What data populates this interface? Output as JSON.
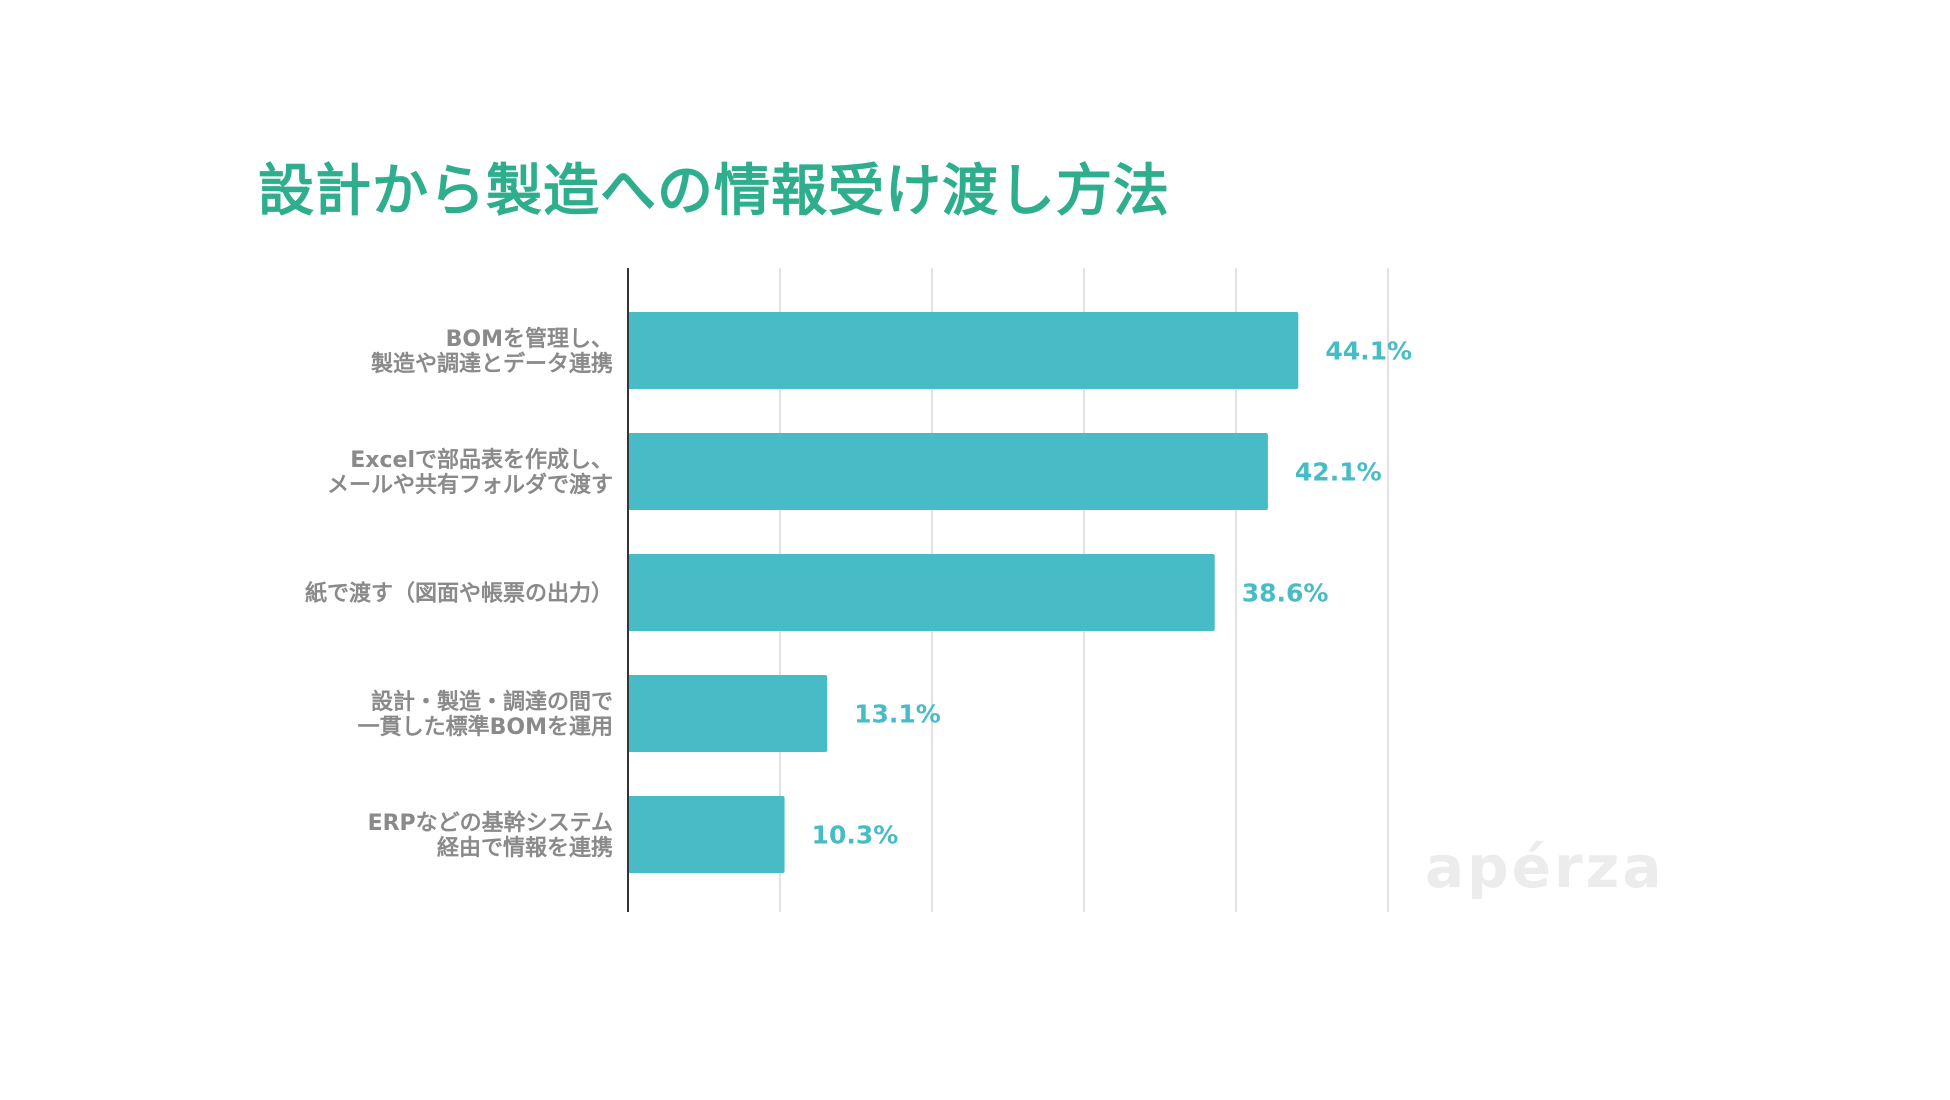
{
  "colors": {
    "title": "#2fae8d",
    "bar": "#47bcc6",
    "value_label": "#47bcc6",
    "category_label": "#8a8a8a",
    "grid": "#d9d9d9",
    "axis": "#333333"
  },
  "watermark": "apérza",
  "chart_data": {
    "type": "bar",
    "orientation": "horizontal",
    "title": "設計から製造への情報受け渡し方法",
    "categories": [
      [
        "BOMを管理し、",
        "製造や調達とデータ連携"
      ],
      [
        "Excelで部品表を作成し、",
        "メールや共有フォルダで渡す"
      ],
      [
        "紙で渡す（図面や帳票の出力）"
      ],
      [
        "設計・製造・調達の間で",
        "一貫した標準BOMを運用"
      ],
      [
        "ERPなどの基幹システム",
        "経由で情報を連携"
      ]
    ],
    "values": [
      44.1,
      42.1,
      38.6,
      13.1,
      10.3
    ],
    "value_labels": [
      "44.1%",
      "42.1%",
      "38.6%",
      "13.1%",
      "10.3%"
    ],
    "xlim": [
      0,
      50
    ],
    "grid": true
  }
}
